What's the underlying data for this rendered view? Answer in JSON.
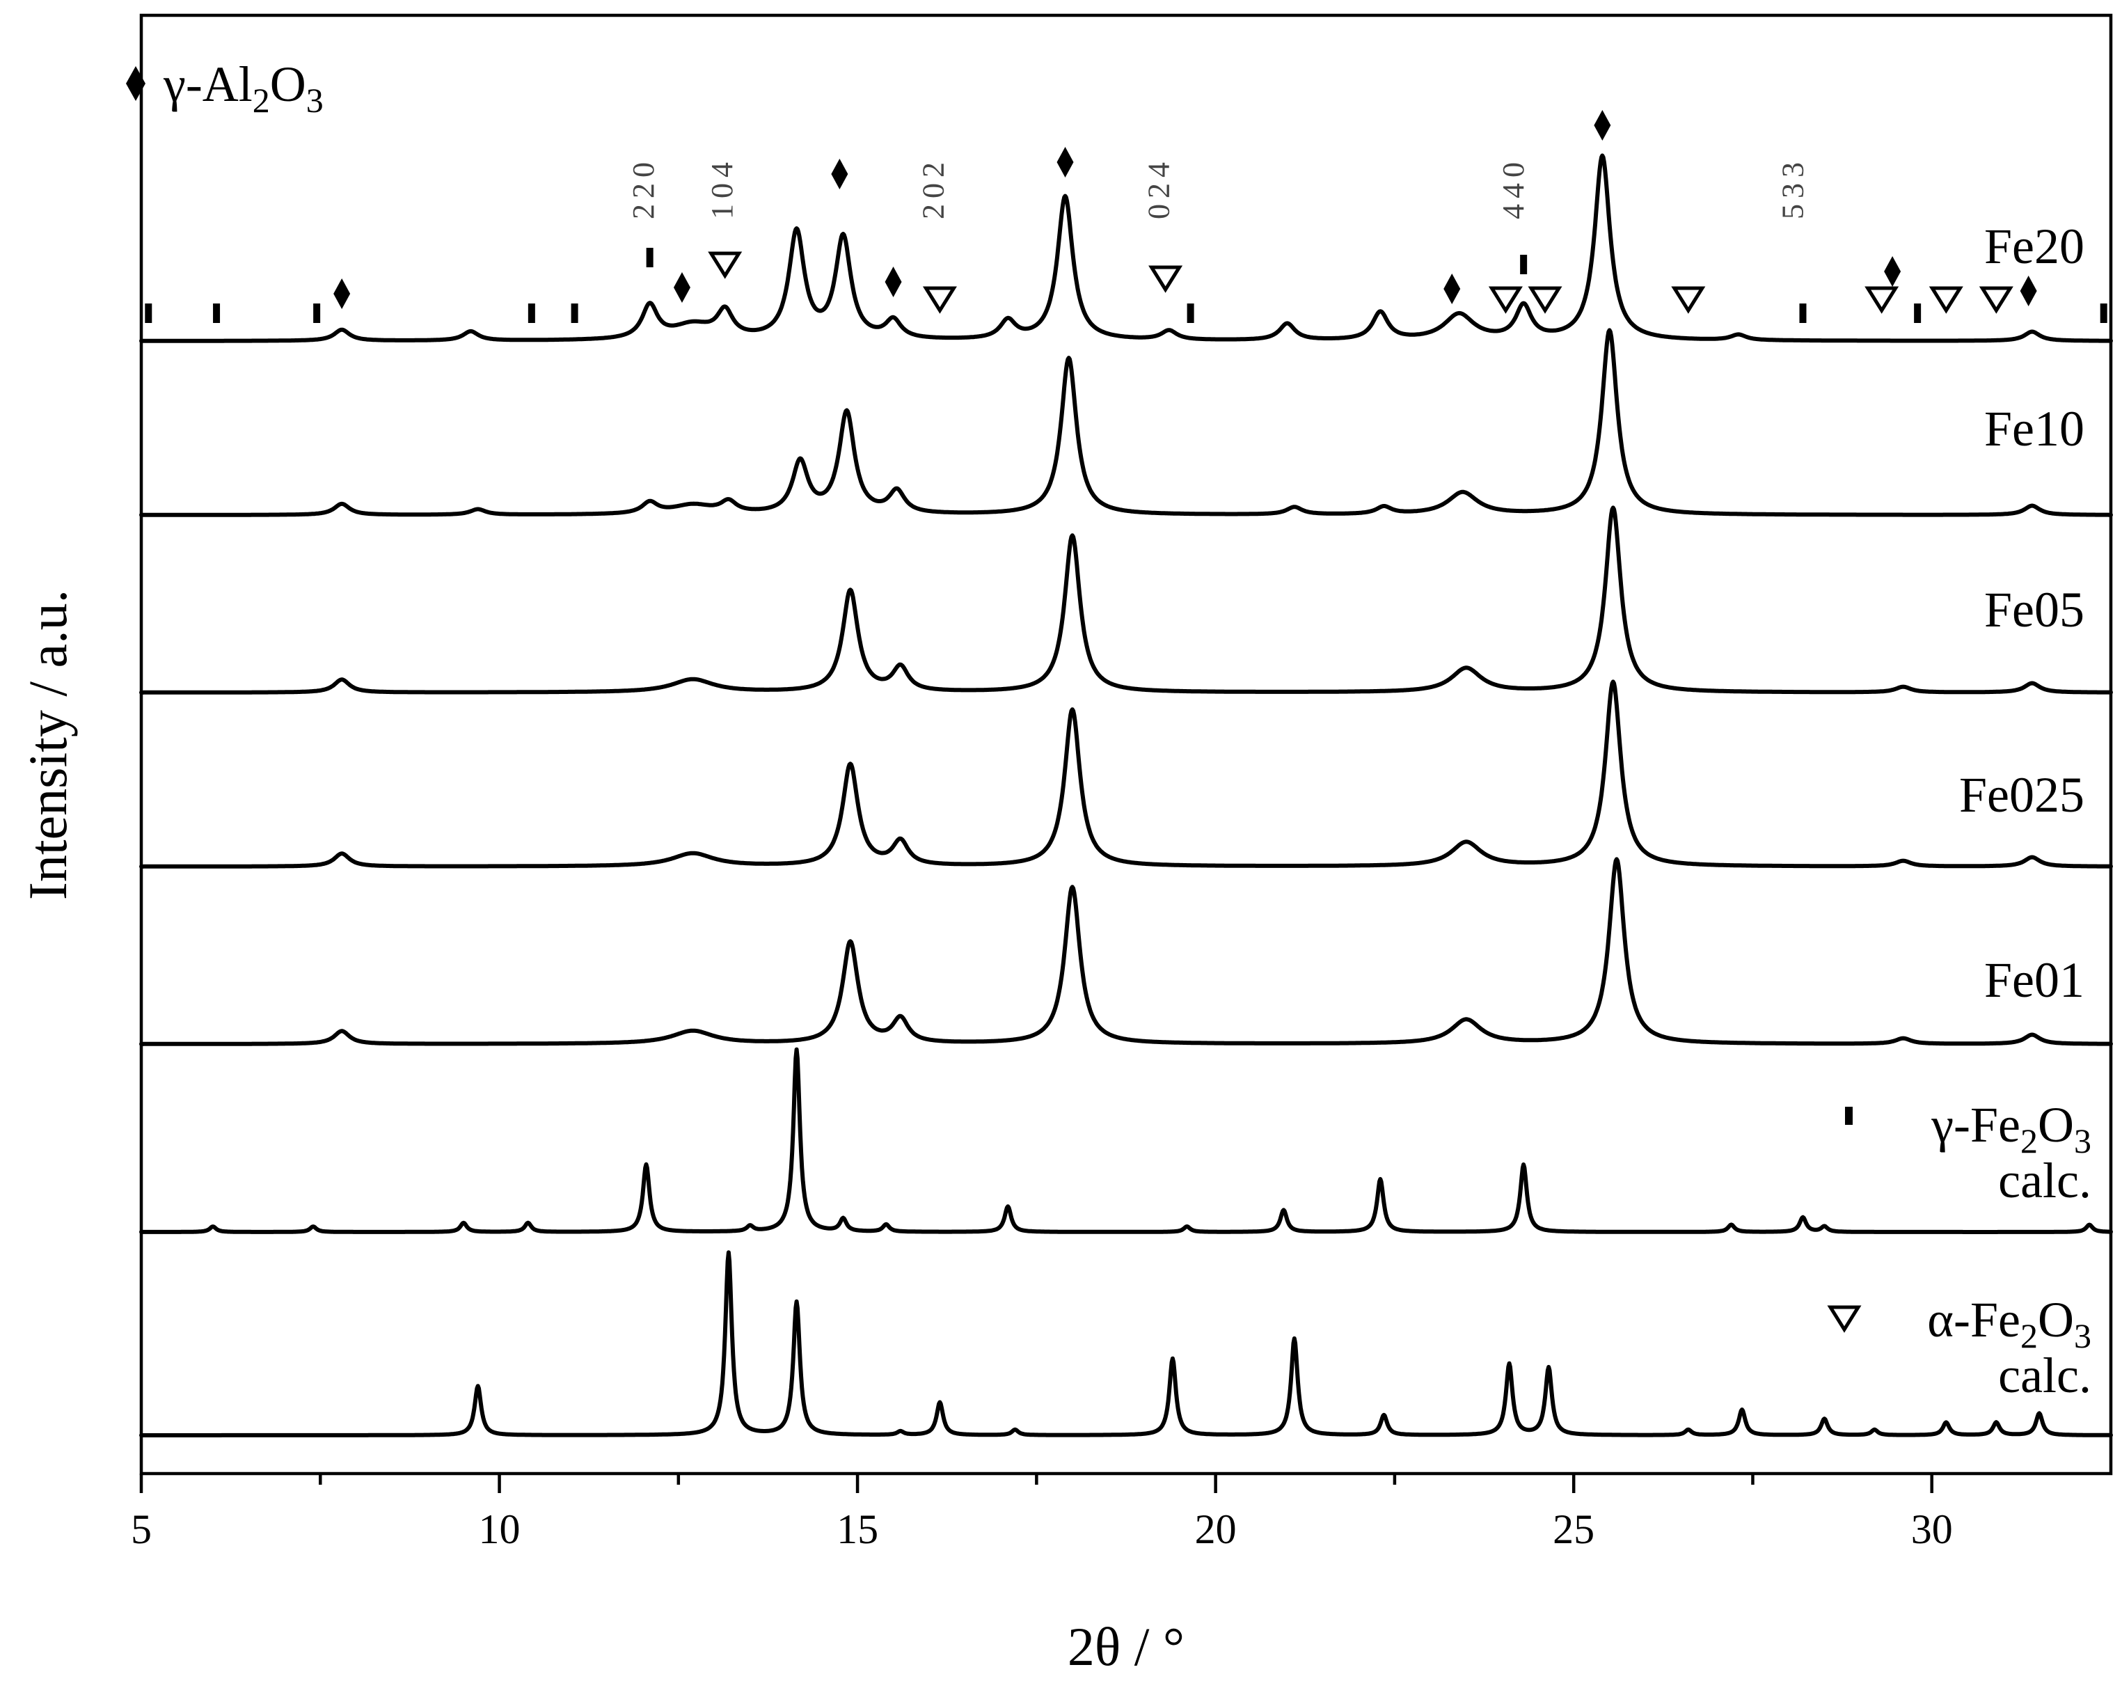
{
  "chart_data": {
    "type": "line",
    "xlabel": "2θ / °",
    "ylabel": "Intensity / a.u.",
    "xlim": [
      5,
      32.5
    ],
    "x_ticks": [
      5,
      10,
      15,
      20,
      25,
      30
    ],
    "grid": false,
    "series": [
      {
        "name": "Fe20",
        "peaks": [
          {
            "x": 7.8,
            "h": 0.06
          },
          {
            "x": 9.6,
            "h": 0.05
          },
          {
            "x": 12.1,
            "h": 0.18
          },
          {
            "x": 12.7,
            "h": 0.08
          },
          {
            "x": 13.15,
            "h": 0.14
          },
          {
            "x": 14.15,
            "h": 0.58
          },
          {
            "x": 14.8,
            "h": 0.55
          },
          {
            "x": 15.5,
            "h": 0.1
          },
          {
            "x": 17.1,
            "h": 0.1
          },
          {
            "x": 17.9,
            "h": 0.78
          },
          {
            "x": 19.35,
            "h": 0.05
          },
          {
            "x": 21.0,
            "h": 0.09
          },
          {
            "x": 22.3,
            "h": 0.15
          },
          {
            "x": 23.4,
            "h": 0.14
          },
          {
            "x": 24.3,
            "h": 0.18
          },
          {
            "x": 25.4,
            "h": 1.0
          },
          {
            "x": 27.3,
            "h": 0.03
          },
          {
            "x": 31.4,
            "h": 0.05
          }
        ]
      },
      {
        "name": "Fe10",
        "peaks": [
          {
            "x": 7.8,
            "h": 0.06
          },
          {
            "x": 9.7,
            "h": 0.03
          },
          {
            "x": 12.1,
            "h": 0.06
          },
          {
            "x": 12.7,
            "h": 0.05
          },
          {
            "x": 13.2,
            "h": 0.06
          },
          {
            "x": 14.2,
            "h": 0.28
          },
          {
            "x": 14.85,
            "h": 0.55
          },
          {
            "x": 15.55,
            "h": 0.12
          },
          {
            "x": 17.95,
            "h": 0.85
          },
          {
            "x": 21.1,
            "h": 0.04
          },
          {
            "x": 22.35,
            "h": 0.04
          },
          {
            "x": 23.45,
            "h": 0.12
          },
          {
            "x": 25.5,
            "h": 1.0
          },
          {
            "x": 31.4,
            "h": 0.05
          }
        ]
      },
      {
        "name": "Fe05",
        "peaks": [
          {
            "x": 7.8,
            "h": 0.07
          },
          {
            "x": 12.7,
            "h": 0.07
          },
          {
            "x": 14.9,
            "h": 0.55
          },
          {
            "x": 15.6,
            "h": 0.13
          },
          {
            "x": 18.0,
            "h": 0.85
          },
          {
            "x": 23.5,
            "h": 0.13
          },
          {
            "x": 25.55,
            "h": 1.0
          },
          {
            "x": 29.6,
            "h": 0.03
          },
          {
            "x": 31.4,
            "h": 0.05
          }
        ]
      },
      {
        "name": "Fe025",
        "peaks": [
          {
            "x": 7.8,
            "h": 0.07
          },
          {
            "x": 12.7,
            "h": 0.07
          },
          {
            "x": 14.9,
            "h": 0.55
          },
          {
            "x": 15.6,
            "h": 0.13
          },
          {
            "x": 18.0,
            "h": 0.85
          },
          {
            "x": 23.5,
            "h": 0.13
          },
          {
            "x": 25.55,
            "h": 1.0
          },
          {
            "x": 29.6,
            "h": 0.03
          },
          {
            "x": 31.4,
            "h": 0.05
          }
        ]
      },
      {
        "name": "Fe01",
        "peaks": [
          {
            "x": 7.8,
            "h": 0.07
          },
          {
            "x": 12.7,
            "h": 0.07
          },
          {
            "x": 14.9,
            "h": 0.55
          },
          {
            "x": 15.6,
            "h": 0.13
          },
          {
            "x": 18.0,
            "h": 0.85
          },
          {
            "x": 23.5,
            "h": 0.13
          },
          {
            "x": 25.6,
            "h": 1.0
          },
          {
            "x": 29.6,
            "h": 0.03
          },
          {
            "x": 31.4,
            "h": 0.05
          }
        ]
      },
      {
        "name": "γ-Fe2O3 calc.",
        "peaks": [
          {
            "x": 6.0,
            "h": 0.03
          },
          {
            "x": 7.4,
            "h": 0.03
          },
          {
            "x": 9.5,
            "h": 0.05
          },
          {
            "x": 10.4,
            "h": 0.05
          },
          {
            "x": 12.05,
            "h": 0.37
          },
          {
            "x": 13.5,
            "h": 0.03
          },
          {
            "x": 14.15,
            "h": 1.0
          },
          {
            "x": 14.8,
            "h": 0.07
          },
          {
            "x": 15.4,
            "h": 0.04
          },
          {
            "x": 17.1,
            "h": 0.14
          },
          {
            "x": 19.6,
            "h": 0.03
          },
          {
            "x": 20.95,
            "h": 0.12
          },
          {
            "x": 22.3,
            "h": 0.29
          },
          {
            "x": 24.3,
            "h": 0.37
          },
          {
            "x": 27.2,
            "h": 0.04
          },
          {
            "x": 28.2,
            "h": 0.08
          },
          {
            "x": 28.5,
            "h": 0.03
          },
          {
            "x": 32.2,
            "h": 0.04
          }
        ]
      },
      {
        "name": "α-Fe2O3 calc.",
        "peaks": [
          {
            "x": 9.7,
            "h": 0.27
          },
          {
            "x": 13.2,
            "h": 1.0
          },
          {
            "x": 14.15,
            "h": 0.73
          },
          {
            "x": 15.6,
            "h": 0.02
          },
          {
            "x": 16.15,
            "h": 0.18
          },
          {
            "x": 17.2,
            "h": 0.03
          },
          {
            "x": 19.4,
            "h": 0.42
          },
          {
            "x": 21.1,
            "h": 0.53
          },
          {
            "x": 22.35,
            "h": 0.11
          },
          {
            "x": 24.1,
            "h": 0.39
          },
          {
            "x": 24.65,
            "h": 0.37
          },
          {
            "x": 26.6,
            "h": 0.03
          },
          {
            "x": 27.35,
            "h": 0.14
          },
          {
            "x": 28.5,
            "h": 0.09
          },
          {
            "x": 29.2,
            "h": 0.03
          },
          {
            "x": 30.2,
            "h": 0.07
          },
          {
            "x": 30.9,
            "h": 0.07
          },
          {
            "x": 31.5,
            "h": 0.12
          }
        ]
      }
    ],
    "markers": {
      "gamma_Al2O3_diamond_x": [
        7.8,
        12.55,
        14.75,
        15.5,
        17.9,
        23.3,
        25.4,
        29.45,
        31.35
      ],
      "gamma_Fe2O3_bar_x": [
        5.1,
        6.05,
        7.45,
        10.45,
        11.05,
        12.1,
        19.65,
        24.3,
        28.2,
        29.8,
        32.4
      ],
      "alpha_Fe2O3_triangle_x": [
        13.15,
        16.15,
        19.3,
        24.05,
        24.6,
        26.6,
        29.3,
        30.2,
        30.9
      ]
    },
    "hkl_labels": [
      {
        "text": "220",
        "x": 12.15
      },
      {
        "text": "104",
        "x": 13.25
      },
      {
        "text": "202",
        "x": 16.2
      },
      {
        "text": "024",
        "x": 19.35
      },
      {
        "text": "440",
        "x": 24.3
      },
      {
        "text": "533",
        "x": 28.2
      }
    ],
    "legend": {
      "gamma_Al2O3": {
        "prefix": "γ-Al",
        "sub1": "2",
        "mid": "O",
        "sub2": "3"
      },
      "gamma_Fe2O3": {
        "prefix": "γ-Fe",
        "sub1": "2",
        "mid": "O",
        "sub2": "3",
        "note": "calc."
      },
      "alpha_Fe2O3": {
        "prefix": "α-Fe",
        "sub1": "2",
        "mid": "O",
        "sub2": "3",
        "note": "calc."
      }
    },
    "sample_labels": [
      "Fe20",
      "Fe10",
      "Fe05",
      "Fe025",
      "Fe01"
    ]
  }
}
